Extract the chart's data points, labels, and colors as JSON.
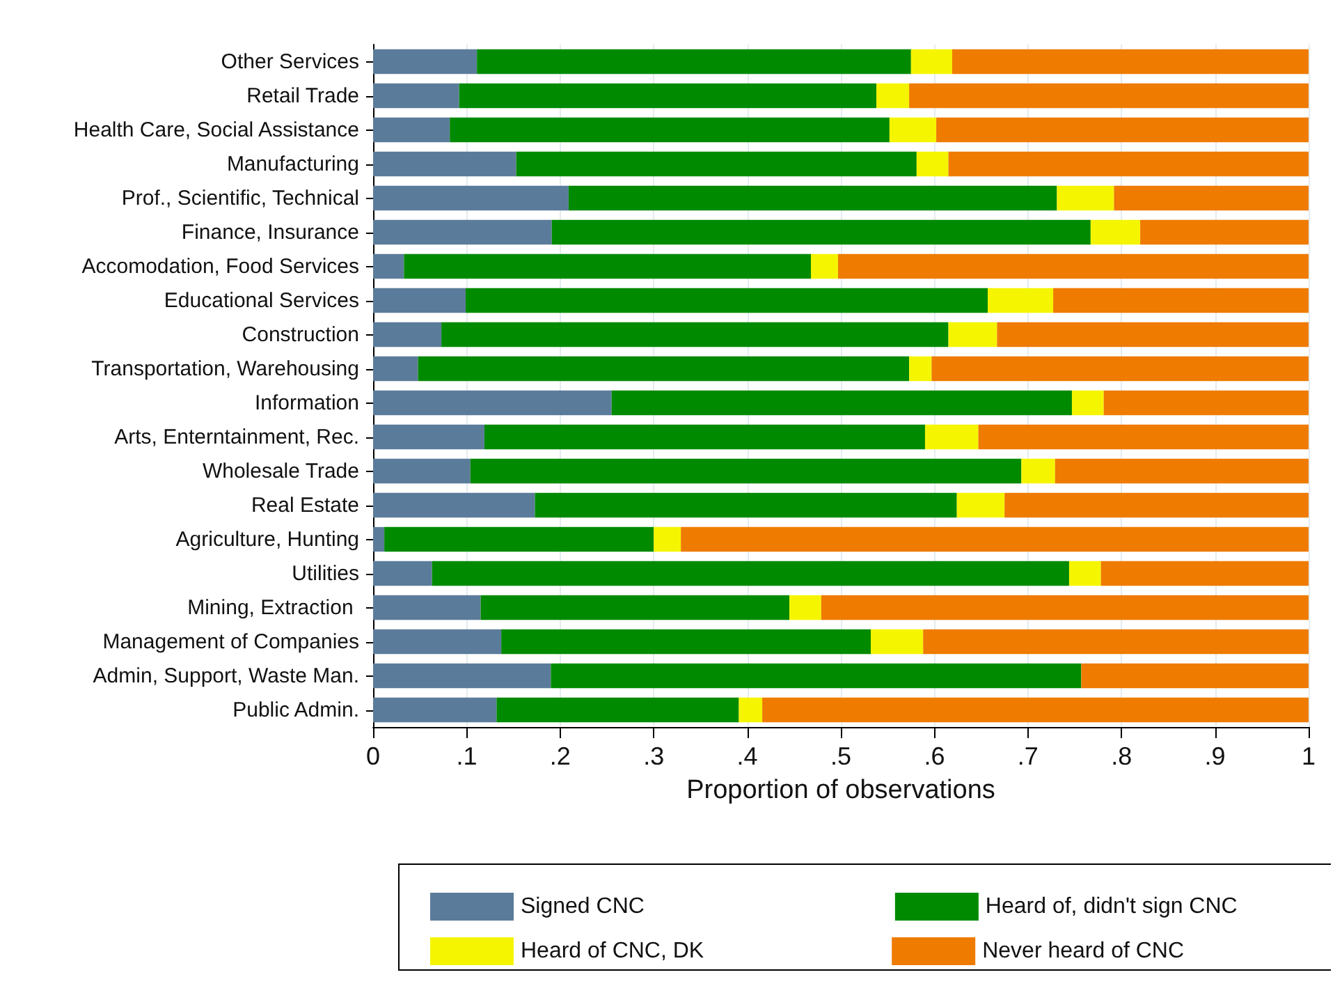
{
  "chart_data": {
    "type": "bar",
    "orientation": "horizontal",
    "stacked": true,
    "xlabel": "Proportion of observations",
    "categories": [
      "Other Services",
      "Retail Trade",
      "Health Care, Social Assistance",
      "Manufacturing",
      "Prof., Scientific, Technical",
      "Finance, Insurance",
      "Accomodation, Food Services",
      "Educational Services",
      "Construction",
      "Transportation, Warehousing",
      "Information",
      "Arts, Enterntainment, Rec.",
      "Wholesale Trade",
      "Real Estate",
      "Agriculture, Hunting",
      "Utilities",
      "Mining, Extraction ",
      "Management of Companies",
      "Admin, Support, Waste Man.",
      "Public Admin."
    ],
    "series": [
      {
        "name": "Signed CNC",
        "color": "#5b7b9a",
        "values": [
          0.111,
          0.092,
          0.082,
          0.153,
          0.209,
          0.191,
          0.033,
          0.099,
          0.073,
          0.048,
          0.255,
          0.119,
          0.104,
          0.173,
          0.012,
          0.063,
          0.115,
          0.137,
          0.19,
          0.132
        ]
      },
      {
        "name": "Heard of, didn't sign CNC",
        "color": "#008a00",
        "values": [
          0.464,
          0.446,
          0.47,
          0.428,
          0.522,
          0.576,
          0.435,
          0.558,
          0.542,
          0.525,
          0.492,
          0.471,
          0.589,
          0.451,
          0.288,
          0.681,
          0.33,
          0.395,
          0.567,
          0.259
        ]
      },
      {
        "name": "Heard of CNC, DK",
        "color": "#f5f500",
        "values": [
          0.044,
          0.035,
          0.05,
          0.034,
          0.061,
          0.053,
          0.029,
          0.07,
          0.052,
          0.024,
          0.034,
          0.057,
          0.036,
          0.051,
          0.029,
          0.034,
          0.034,
          0.056,
          0,
          0.025
        ]
      },
      {
        "name": "Never heard of CNC",
        "color": "#ef7b00",
        "values": [
          0.381,
          0.427,
          0.398,
          0.385,
          0.208,
          0.18,
          0.503,
          0.273,
          0.333,
          0.403,
          0.219,
          0.353,
          0.271,
          0.325,
          0.671,
          0.222,
          0.521,
          0.412,
          0.243,
          0.584
        ]
      }
    ],
    "xlim": [
      0,
      1
    ],
    "xticks": [
      0,
      {
        "value": 0.1,
        "label": ".1"
      },
      {
        "value": 0.2,
        "label": ".2"
      },
      {
        "value": 0.3,
        "label": ".3"
      },
      {
        "value": 0.4,
        "label": ".4"
      },
      {
        "value": 0.5,
        "label": ".5"
      },
      {
        "value": 0.6,
        "label": ".6"
      },
      {
        "value": 0.7,
        "label": ".7"
      },
      {
        "value": 0.8,
        "label": ".8"
      },
      {
        "value": 0.9,
        "label": ".9"
      },
      1
    ],
    "grid": "x",
    "legend": "bottom"
  }
}
